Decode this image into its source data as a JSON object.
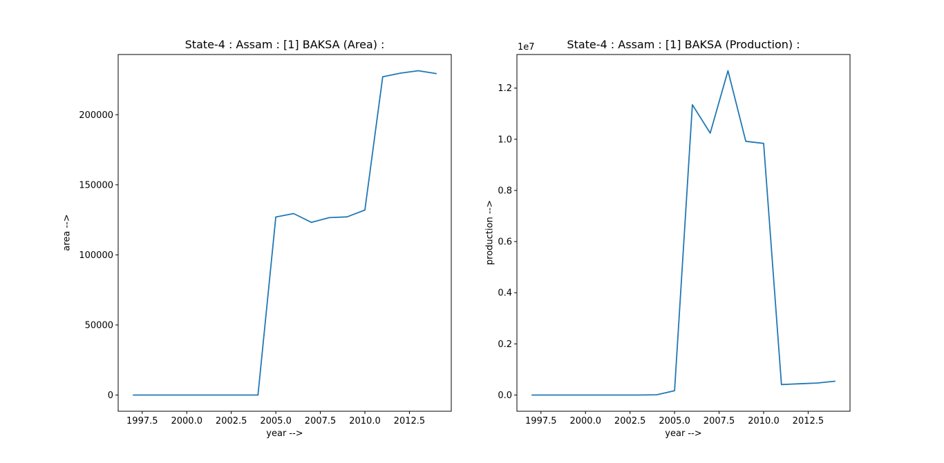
{
  "figure": {
    "background_color": "#ffffff",
    "line_color": "#1f77b4",
    "axis_color": "#000000"
  },
  "chart_data": [
    {
      "type": "line",
      "title": "State-4 : Assam : [1] BAKSA (Area) :",
      "xlabel": "year -->",
      "ylabel": "area -->",
      "grid": false,
      "legend": "none",
      "x": [
        1997,
        1998,
        1999,
        2000,
        2001,
        2002,
        2003,
        2004,
        2005,
        2006,
        2007,
        2008,
        2009,
        2010,
        2011,
        2012,
        2013,
        2014
      ],
      "y": [
        0,
        0,
        0,
        0,
        0,
        0,
        0,
        0,
        127000,
        129500,
        123200,
        126600,
        127100,
        132000,
        227100,
        229700,
        231400,
        229400
      ],
      "xlim": [
        1996.15,
        2014.85
      ],
      "ylim": [
        -11570,
        242970
      ],
      "xticks": [
        1997.5,
        2000.0,
        2002.5,
        2005.0,
        2007.5,
        2010.0,
        2012.5
      ],
      "xtick_labels": [
        "1997.5",
        "2000.0",
        "2002.5",
        "2005.0",
        "2007.5",
        "2010.0",
        "2012.5"
      ],
      "yticks": [
        0,
        50000,
        100000,
        150000,
        200000
      ],
      "ytick_labels": [
        "0",
        "50000",
        "100000",
        "150000",
        "200000"
      ],
      "offset_text": ""
    },
    {
      "type": "line",
      "title": "State-4 : Assam : [1] BAKSA (Production) :",
      "xlabel": "year -->",
      "ylabel": "production -->",
      "grid": false,
      "legend": "none",
      "x": [
        1997,
        1998,
        1999,
        2000,
        2001,
        2002,
        2003,
        2004,
        2005,
        2006,
        2007,
        2008,
        2009,
        2010,
        2011,
        2012,
        2013,
        2014
      ],
      "y": [
        0,
        0,
        0,
        0,
        0,
        0,
        0,
        10000,
        170000,
        11350000,
        10240000,
        12680000,
        9920000,
        9840000,
        410000,
        440000,
        470000,
        540000
      ],
      "xlim": [
        1996.15,
        2014.85
      ],
      "ylim": [
        -634000,
        13314000
      ],
      "xticks": [
        1997.5,
        2000.0,
        2002.5,
        2005.0,
        2007.5,
        2010.0,
        2012.5
      ],
      "xtick_labels": [
        "1997.5",
        "2000.0",
        "2002.5",
        "2005.0",
        "2007.5",
        "2010.0",
        "2012.5"
      ],
      "yticks": [
        0,
        2000000,
        4000000,
        6000000,
        8000000,
        10000000,
        12000000
      ],
      "ytick_labels": [
        "0.0",
        "0.2",
        "0.4",
        "0.6",
        "0.8",
        "1.0",
        "1.2"
      ],
      "offset_text": "1e7"
    }
  ]
}
